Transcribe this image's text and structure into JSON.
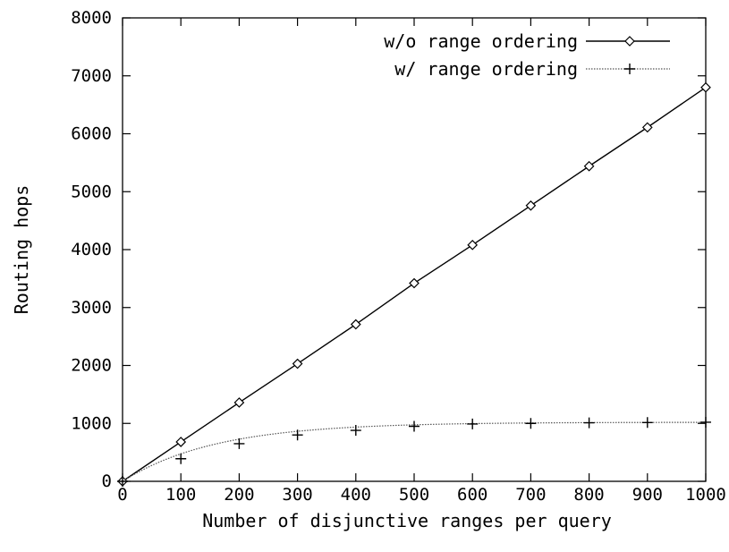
{
  "chart_data": {
    "type": "line",
    "title": "",
    "xlabel": "Number of disjunctive ranges per query",
    "ylabel": "Routing hops",
    "xlim": [
      0,
      1000
    ],
    "ylim": [
      0,
      8000
    ],
    "x_ticks": [
      0,
      100,
      200,
      300,
      400,
      500,
      600,
      700,
      800,
      900,
      1000
    ],
    "y_ticks": [
      0,
      1000,
      2000,
      3000,
      4000,
      5000,
      6000,
      7000,
      8000
    ],
    "grid": false,
    "legend_position": "top-right",
    "x": [
      0,
      100,
      200,
      300,
      400,
      500,
      600,
      700,
      800,
      900,
      1000
    ],
    "series": [
      {
        "name": "w/o range ordering",
        "marker": "diamond",
        "line_style": "solid",
        "color": "#000000",
        "values": [
          0,
          680,
          1360,
          2030,
          2710,
          3420,
          4080,
          4760,
          5440,
          6110,
          6800
        ]
      },
      {
        "name": "w/ range ordering",
        "marker": "plus",
        "line_style": "dotted",
        "color": "#555555",
        "values": [
          0,
          390,
          650,
          800,
          880,
          950,
          990,
          1000,
          1010,
          1015,
          1020
        ]
      }
    ]
  }
}
